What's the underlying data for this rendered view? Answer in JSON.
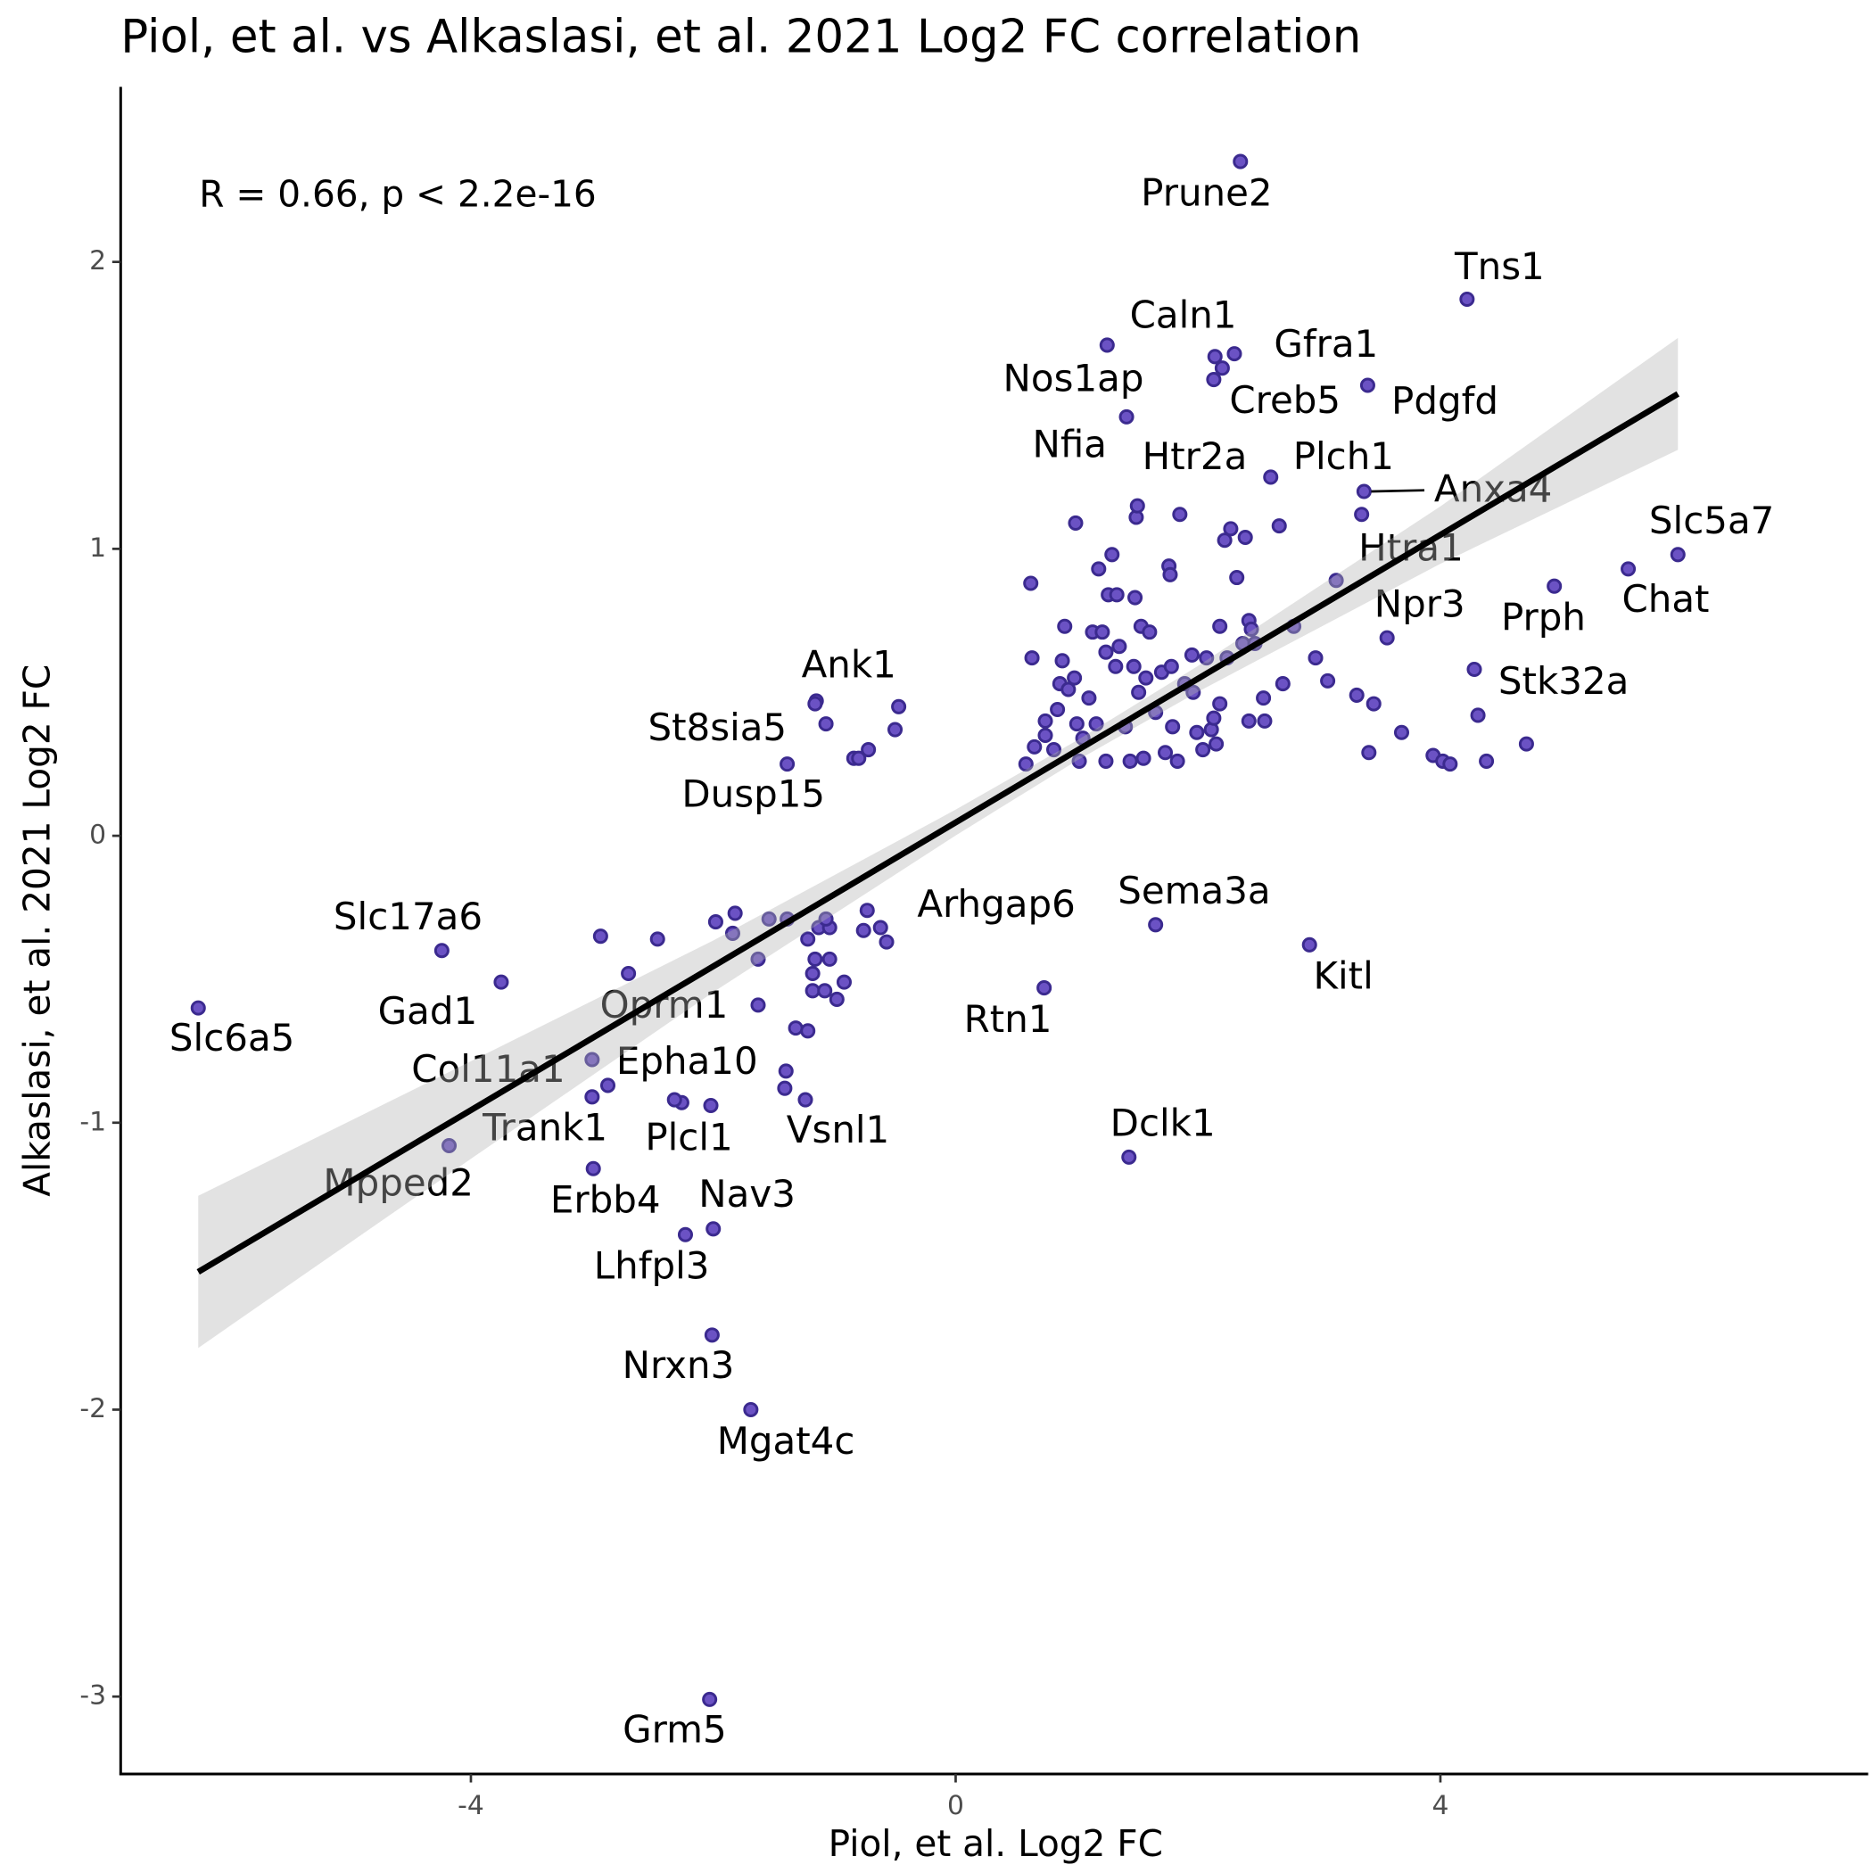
{
  "chart_data": {
    "type": "scatter",
    "title": "Piol, et al. vs Alkaslasi, et al. 2021 Log2 FC correlation",
    "xlabel": "Piol, et al. Log2 FC",
    "ylabel": "Alkaslasi, et al. 2021 Log2 FC",
    "annotation": "R = 0.66, p < 2.2e-16",
    "color": "#6b52c4",
    "xlim": [
      -6.89,
      7.53
    ],
    "ylim": [
      -3.27,
      2.61
    ],
    "xticks": [
      -4,
      0,
      4
    ],
    "yticks": [
      -3,
      -2,
      -1,
      0,
      1,
      2
    ],
    "fit": {
      "x": [
        -6.25,
        5.96
      ],
      "y": [
        -1.52,
        1.54
      ]
    },
    "band": {
      "x": [
        -6.25,
        -4,
        -2,
        0,
        1,
        2,
        4,
        5.96
      ],
      "lower": [
        -1.785,
        -1.126,
        -0.545,
        0.001,
        0.262,
        0.502,
        0.948,
        1.345
      ],
      "upper": [
        -1.255,
        -0.786,
        -0.365,
        0.091,
        0.332,
        0.592,
        1.148,
        1.735
      ]
    },
    "points": [
      {
        "x": 2.35,
        "y": 2.35,
        "label": "Prune2"
      },
      {
        "x": 4.22,
        "y": 1.87,
        "label": "Tns1"
      },
      {
        "x": 1.25,
        "y": 1.71,
        "label": "Caln1"
      },
      {
        "x": 2.3,
        "y": 1.68,
        "label": "Gfra1"
      },
      {
        "x": 2.13,
        "y": 1.59,
        "label": "Creb5"
      },
      {
        "x": 3.4,
        "y": 1.57,
        "label": "Pdgfd"
      },
      {
        "x": 1.41,
        "y": 1.46,
        "label": "Nos1ap"
      },
      {
        "x": 0.99,
        "y": 1.09,
        "label": "Nfia"
      },
      {
        "x": 2.6,
        "y": 1.25,
        "label": "Htr2a"
      },
      {
        "x": 3.35,
        "y": 1.12,
        "label": "Plch1"
      },
      {
        "x": 3.37,
        "y": 1.2,
        "label": "Anxa4"
      },
      {
        "x": 3.14,
        "y": 0.89,
        "label": "Htra1"
      },
      {
        "x": 3.56,
        "y": 0.69,
        "label": "Npr3"
      },
      {
        "x": 5.96,
        "y": 0.98,
        "label": "Slc5a7"
      },
      {
        "x": 5.55,
        "y": 0.93,
        "label": "Chat"
      },
      {
        "x": 4.94,
        "y": 0.87,
        "label": "Prph"
      },
      {
        "x": 4.28,
        "y": 0.58,
        "label": "Stk32a"
      },
      {
        "x": -1.15,
        "y": 0.47,
        "label": "Ank1"
      },
      {
        "x": -1.07,
        "y": 0.39,
        "label": "St8sia5"
      },
      {
        "x": -1.39,
        "y": 0.25,
        "label": "Dusp15"
      },
      {
        "x": -0.73,
        "y": -0.26,
        "label": "Arhgap6"
      },
      {
        "x": 1.65,
        "y": -0.31,
        "label": "Sema3a"
      },
      {
        "x": 0.73,
        "y": -0.53,
        "label": "Rtn1"
      },
      {
        "x": 2.92,
        "y": -0.38,
        "label": "Kitl"
      },
      {
        "x": -4.24,
        "y": -0.4,
        "label": "Slc17a6"
      },
      {
        "x": -3.75,
        "y": -0.51,
        "label": "Gad1"
      },
      {
        "x": -6.25,
        "y": -0.6,
        "label": "Slc6a5"
      },
      {
        "x": -1.63,
        "y": -0.59,
        "label": "Oprm1"
      },
      {
        "x": -3.0,
        "y": -0.78,
        "label": "Col11a1"
      },
      {
        "x": -1.4,
        "y": -0.82,
        "label": "Epha10"
      },
      {
        "x": -2.87,
        "y": -0.87,
        "label": "Trank1"
      },
      {
        "x": -2.26,
        "y": -0.93,
        "label": "Plcl1"
      },
      {
        "x": -1.24,
        "y": -0.92,
        "label": "Vsnl1"
      },
      {
        "x": -4.18,
        "y": -1.08,
        "label": "Mpped2"
      },
      {
        "x": -2.99,
        "y": -1.16,
        "label": "Erbb4"
      },
      {
        "x": -2.0,
        "y": -1.37,
        "label": "Nav3"
      },
      {
        "x": -2.23,
        "y": -1.39,
        "label": "Lhfpl3"
      },
      {
        "x": 1.43,
        "y": -1.12,
        "label": "Dclk1"
      },
      {
        "x": -2.01,
        "y": -1.74,
        "label": "Nrxn3"
      },
      {
        "x": -1.69,
        "y": -2.0,
        "label": "Mgat4c"
      },
      {
        "x": -2.03,
        "y": -3.01,
        "label": "Grm5"
      },
      {
        "x": -2.93,
        "y": -0.35
      },
      {
        "x": -2.46,
        "y": -0.36
      },
      {
        "x": -2.7,
        "y": -0.48
      },
      {
        "x": -1.82,
        "y": -0.27
      },
      {
        "x": -1.98,
        "y": -0.3
      },
      {
        "x": -1.54,
        "y": -0.29
      },
      {
        "x": -1.39,
        "y": -0.29
      },
      {
        "x": -1.84,
        "y": -0.34
      },
      {
        "x": -1.63,
        "y": -0.43
      },
      {
        "x": -1.22,
        "y": -0.36
      },
      {
        "x": -1.13,
        "y": -0.32
      },
      {
        "x": -1.04,
        "y": -0.32
      },
      {
        "x": -1.07,
        "y": -0.29
      },
      {
        "x": -1.16,
        "y": -0.43
      },
      {
        "x": -1.04,
        "y": -0.43
      },
      {
        "x": -1.18,
        "y": -0.48
      },
      {
        "x": -0.92,
        "y": -0.51
      },
      {
        "x": -1.18,
        "y": -0.54
      },
      {
        "x": -1.08,
        "y": -0.54
      },
      {
        "x": -0.98,
        "y": -0.57
      },
      {
        "x": -1.32,
        "y": -0.67
      },
      {
        "x": -1.22,
        "y": -0.68
      },
      {
        "x": -1.41,
        "y": -0.88
      },
      {
        "x": -0.76,
        "y": -0.33
      },
      {
        "x": -0.62,
        "y": -0.32
      },
      {
        "x": -0.57,
        "y": -0.37
      },
      {
        "x": -2.02,
        "y": -0.94
      },
      {
        "x": -2.32,
        "y": -0.92
      },
      {
        "x": -3.0,
        "y": -0.91
      },
      {
        "x": -1.16,
        "y": 0.46
      },
      {
        "x": -0.84,
        "y": 0.27
      },
      {
        "x": -0.8,
        "y": 0.27
      },
      {
        "x": -0.72,
        "y": 0.3
      },
      {
        "x": -0.5,
        "y": 0.37
      },
      {
        "x": -0.47,
        "y": 0.45
      },
      {
        "x": 2.14,
        "y": 1.67
      },
      {
        "x": 2.2,
        "y": 1.63
      },
      {
        "x": 0.62,
        "y": 0.88
      },
      {
        "x": 0.63,
        "y": 0.62
      },
      {
        "x": 0.58,
        "y": 0.25
      },
      {
        "x": 0.65,
        "y": 0.31
      },
      {
        "x": 0.74,
        "y": 0.4
      },
      {
        "x": 0.74,
        "y": 0.35
      },
      {
        "x": 0.81,
        "y": 0.3
      },
      {
        "x": 0.84,
        "y": 0.44
      },
      {
        "x": 0.86,
        "y": 0.53
      },
      {
        "x": 0.88,
        "y": 0.61
      },
      {
        "x": 0.9,
        "y": 0.73
      },
      {
        "x": 0.93,
        "y": 0.51
      },
      {
        "x": 0.98,
        "y": 0.55
      },
      {
        "x": 1.0,
        "y": 0.39
      },
      {
        "x": 1.02,
        "y": 0.26
      },
      {
        "x": 1.05,
        "y": 0.34
      },
      {
        "x": 1.1,
        "y": 0.48
      },
      {
        "x": 1.13,
        "y": 0.71
      },
      {
        "x": 1.16,
        "y": 0.39
      },
      {
        "x": 1.18,
        "y": 0.93
      },
      {
        "x": 1.21,
        "y": 0.71
      },
      {
        "x": 1.24,
        "y": 0.64
      },
      {
        "x": 1.24,
        "y": 0.26
      },
      {
        "x": 1.26,
        "y": 0.84
      },
      {
        "x": 1.29,
        "y": 0.98
      },
      {
        "x": 1.33,
        "y": 0.84
      },
      {
        "x": 1.32,
        "y": 0.59
      },
      {
        "x": 1.35,
        "y": 0.66
      },
      {
        "x": 1.4,
        "y": 0.38
      },
      {
        "x": 1.44,
        "y": 0.26
      },
      {
        "x": 1.47,
        "y": 0.59
      },
      {
        "x": 1.48,
        "y": 0.83
      },
      {
        "x": 1.49,
        "y": 1.11
      },
      {
        "x": 1.5,
        "y": 1.15
      },
      {
        "x": 1.51,
        "y": 0.5
      },
      {
        "x": 1.53,
        "y": 0.73
      },
      {
        "x": 1.55,
        "y": 0.27
      },
      {
        "x": 1.57,
        "y": 0.55
      },
      {
        "x": 1.6,
        "y": 0.71
      },
      {
        "x": 1.65,
        "y": 0.43
      },
      {
        "x": 1.7,
        "y": 0.57
      },
      {
        "x": 1.73,
        "y": 0.29
      },
      {
        "x": 1.76,
        "y": 0.94
      },
      {
        "x": 1.77,
        "y": 0.91
      },
      {
        "x": 1.78,
        "y": 0.59
      },
      {
        "x": 1.79,
        "y": 0.38
      },
      {
        "x": 1.83,
        "y": 0.26
      },
      {
        "x": 1.85,
        "y": 1.12
      },
      {
        "x": 1.89,
        "y": 0.53
      },
      {
        "x": 1.95,
        "y": 0.63
      },
      {
        "x": 1.96,
        "y": 0.5
      },
      {
        "x": 1.99,
        "y": 0.36
      },
      {
        "x": 2.04,
        "y": 0.3
      },
      {
        "x": 2.07,
        "y": 0.62
      },
      {
        "x": 2.11,
        "y": 0.37
      },
      {
        "x": 2.13,
        "y": 0.41
      },
      {
        "x": 2.15,
        "y": 0.32
      },
      {
        "x": 2.18,
        "y": 0.73
      },
      {
        "x": 2.18,
        "y": 0.46
      },
      {
        "x": 2.22,
        "y": 1.03
      },
      {
        "x": 2.24,
        "y": 0.62
      },
      {
        "x": 2.27,
        "y": 1.07
      },
      {
        "x": 2.32,
        "y": 0.9
      },
      {
        "x": 2.37,
        "y": 0.67
      },
      {
        "x": 2.39,
        "y": 1.04
      },
      {
        "x": 2.42,
        "y": 0.75
      },
      {
        "x": 2.42,
        "y": 0.4
      },
      {
        "x": 2.44,
        "y": 0.72
      },
      {
        "x": 2.47,
        "y": 0.67
      },
      {
        "x": 2.54,
        "y": 0.48
      },
      {
        "x": 2.55,
        "y": 0.4
      },
      {
        "x": 2.67,
        "y": 1.08
      },
      {
        "x": 2.7,
        "y": 0.53
      },
      {
        "x": 2.79,
        "y": 0.73
      },
      {
        "x": 2.97,
        "y": 0.62
      },
      {
        "x": 3.07,
        "y": 0.54
      },
      {
        "x": 3.31,
        "y": 0.49
      },
      {
        "x": 3.45,
        "y": 0.46
      },
      {
        "x": 3.41,
        "y": 0.29
      },
      {
        "x": 3.68,
        "y": 0.36
      },
      {
        "x": 3.94,
        "y": 0.28
      },
      {
        "x": 4.02,
        "y": 0.26
      },
      {
        "x": 4.08,
        "y": 0.25
      },
      {
        "x": 4.31,
        "y": 0.42
      },
      {
        "x": 4.38,
        "y": 0.26
      },
      {
        "x": 4.71,
        "y": 0.32
      }
    ]
  }
}
